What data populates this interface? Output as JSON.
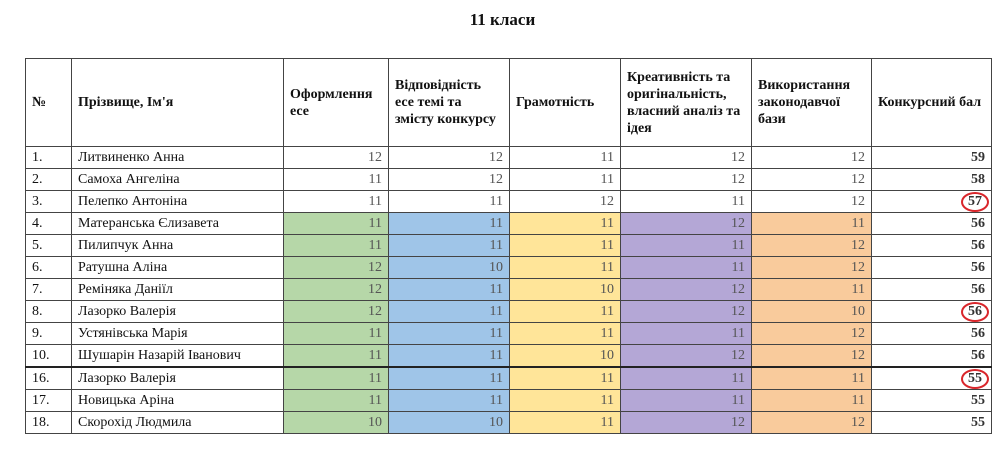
{
  "title": "11 класи",
  "headers": {
    "num": "№",
    "name": "Прізвище, Ім'я",
    "design": "Оформлення есе",
    "relevance": "Відповідність есе темі та змісту конкурсу",
    "literacy": "Грамотність",
    "creativity": "Креативність та оригінальність, власний аналіз та ідея",
    "legislation": "Використання законодавчої бази",
    "total": "Конкурсний бал"
  },
  "rows": [
    {
      "num": "1.",
      "name": "Литвиненко Анна",
      "s1": "12",
      "s2": "12",
      "s3": "11",
      "s4": "12",
      "s5": "12",
      "total": "59"
    },
    {
      "num": "2.",
      "name": "Самоха Ангеліна",
      "s1": "11",
      "s2": "12",
      "s3": "11",
      "s4": "12",
      "s5": "12",
      "total": "58"
    },
    {
      "num": "3.",
      "name": "Пелепко Антоніна",
      "s1": "11",
      "s2": "11",
      "s3": "12",
      "s4": "11",
      "s5": "12",
      "total": "57"
    },
    {
      "num": "4.",
      "name": "Матеранська Єлизавета",
      "s1": "11",
      "s2": "11",
      "s3": "11",
      "s4": "12",
      "s5": "11",
      "total": "56"
    },
    {
      "num": "5.",
      "name": "Пилипчук Анна",
      "s1": "11",
      "s2": "11",
      "s3": "11",
      "s4": "11",
      "s5": "12",
      "total": "56"
    },
    {
      "num": "6.",
      "name": "Ратушна Аліна",
      "s1": "12",
      "s2": "10",
      "s3": "11",
      "s4": "11",
      "s5": "12",
      "total": "56"
    },
    {
      "num": "7.",
      "name": "Реміняка Даніїл",
      "s1": "12",
      "s2": "11",
      "s3": "10",
      "s4": "12",
      "s5": "11",
      "total": "56"
    },
    {
      "num": "8.",
      "name": "Лазорко Валерія",
      "s1": "12",
      "s2": "11",
      "s3": "11",
      "s4": "12",
      "s5": "10",
      "total": "56"
    },
    {
      "num": "9.",
      "name": "Устянівська Марія",
      "s1": "11",
      "s2": "11",
      "s3": "11",
      "s4": "11",
      "s5": "12",
      "total": "56"
    },
    {
      "num": "10.",
      "name": "Шушарін Назарій Іванович",
      "s1": "11",
      "s2": "11",
      "s3": "10",
      "s4": "12",
      "s5": "12",
      "total": "56"
    },
    {
      "num": "16.",
      "name": "Лазорко Валерія",
      "s1": "11",
      "s2": "11",
      "s3": "11",
      "s4": "11",
      "s5": "11",
      "total": "55"
    },
    {
      "num": "17.",
      "name": "Новицька Аріна",
      "s1": "11",
      "s2": "11",
      "s3": "11",
      "s4": "11",
      "s5": "11",
      "total": "55"
    },
    {
      "num": "18.",
      "name": "Скорохід Людмила",
      "s1": "10",
      "s2": "10",
      "s3": "11",
      "s4": "12",
      "s5": "12",
      "total": "55"
    }
  ],
  "highlight_colors": {
    "design": "#b6d7a8",
    "relevance": "#9fc5e8",
    "literacy": "#ffe599",
    "creativity": "#b4a7d6",
    "legislation": "#f9cb9c",
    "circle": "#d9262b"
  }
}
